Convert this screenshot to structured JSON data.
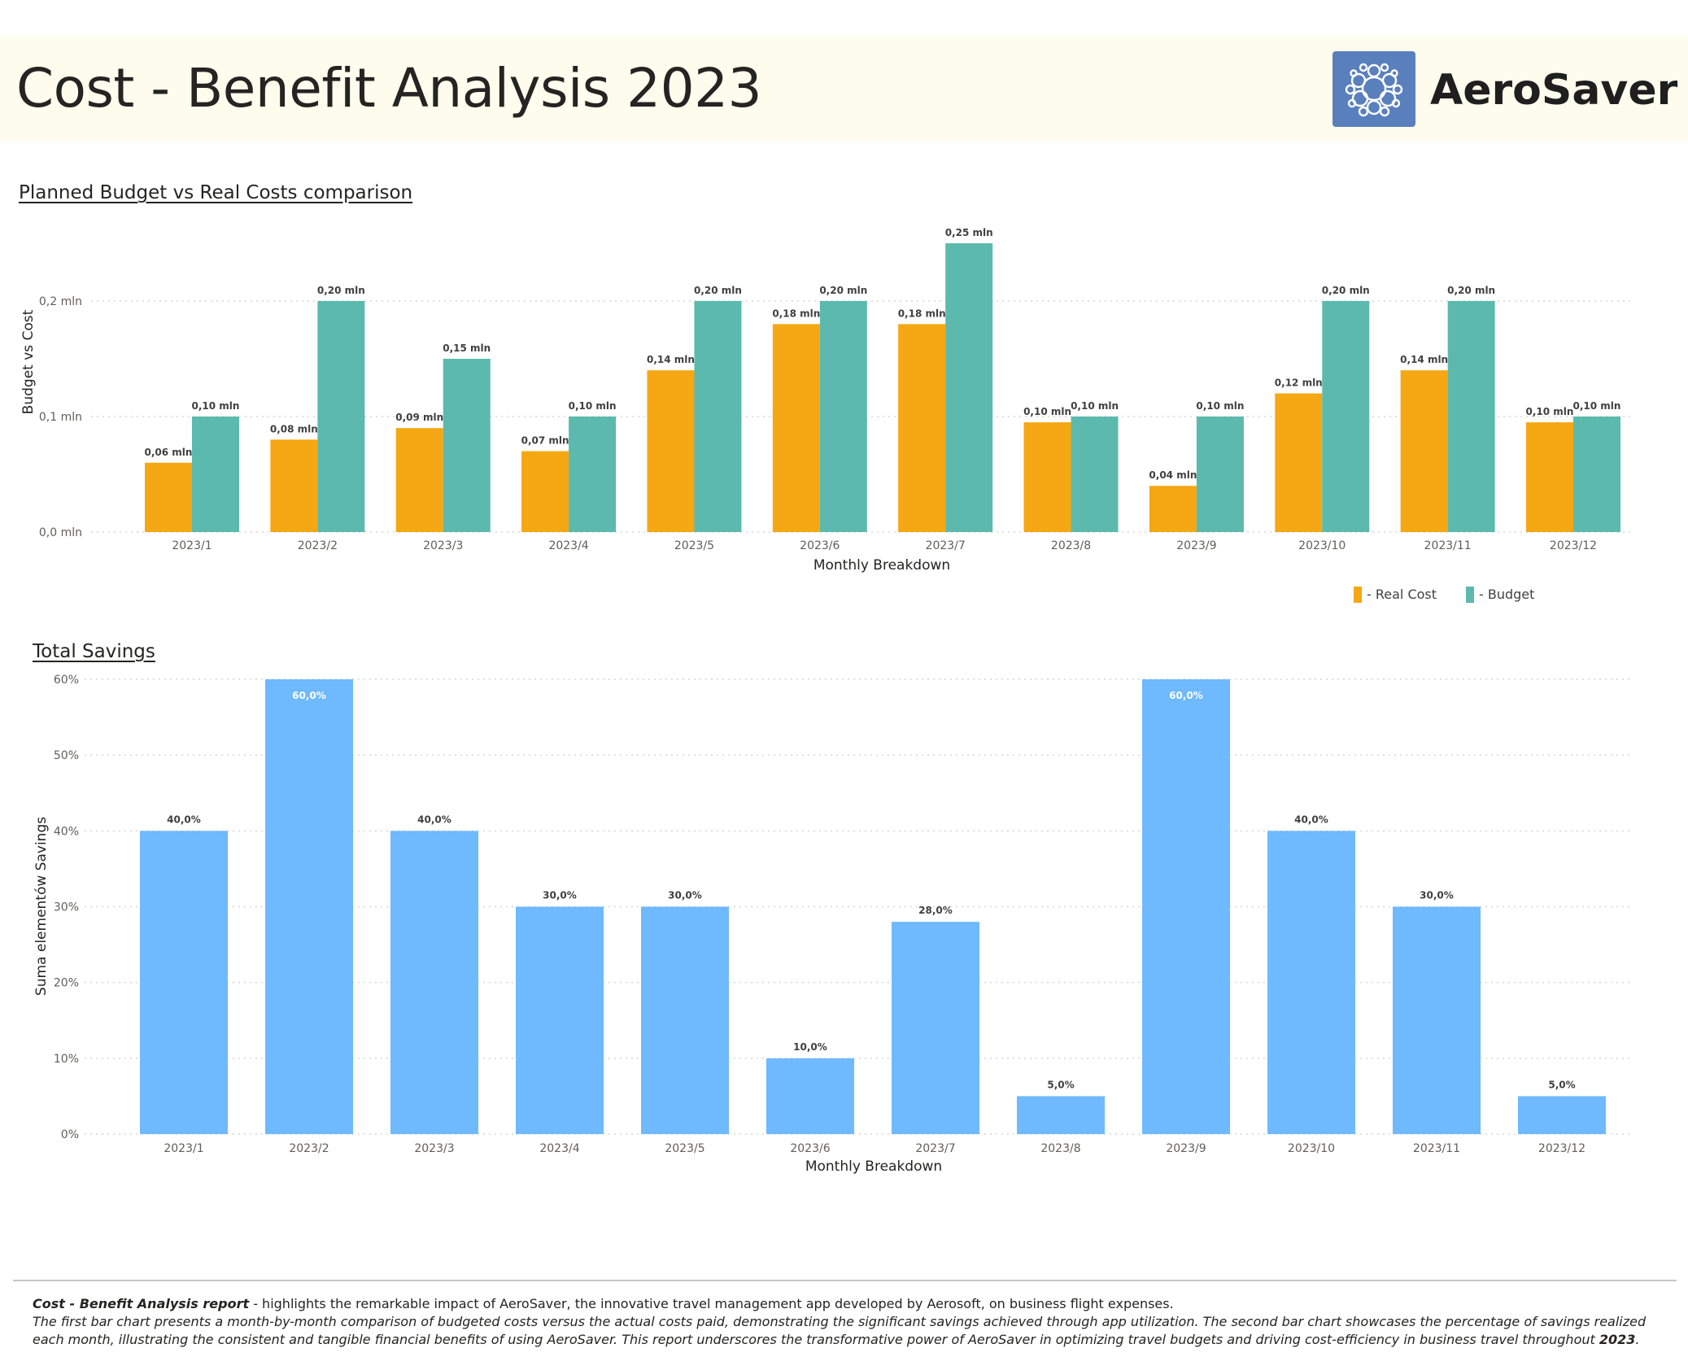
{
  "header": {
    "title": "Cost - Benefit Analysis 2023",
    "brand": "AeroSaver",
    "logo_icon": "bubble-globe-icon",
    "background": "#fefcec",
    "logo_color": "#5a7fbd"
  },
  "chart_data": [
    {
      "type": "bar",
      "title": "Planned Budget vs Real Costs comparison",
      "xlabel": "Monthly Breakdown",
      "ylabel": "Budget vs Cost",
      "categories": [
        "2023/1",
        "2023/2",
        "2023/3",
        "2023/4",
        "2023/5",
        "2023/6",
        "2023/7",
        "2023/8",
        "2023/9",
        "2023/10",
        "2023/11",
        "2023/12"
      ],
      "series": [
        {
          "name": "- Real Cost",
          "color": "#f5a714",
          "values": [
            0.06,
            0.08,
            0.09,
            0.07,
            0.14,
            0.18,
            0.18,
            0.095,
            0.04,
            0.12,
            0.14,
            0.095
          ],
          "labels": [
            "0,06 mln",
            "0,08 mln",
            "0,09 mln",
            "0,07 mln",
            "0,14 mln",
            "0,18 mln",
            "0,18 mln",
            "0,10 mln",
            "0,04 mln",
            "0,12 mln",
            "0,14 mln",
            "0,10 mln"
          ]
        },
        {
          "name": "- Budget",
          "color": "#5bbaad",
          "values": [
            0.1,
            0.2,
            0.15,
            0.1,
            0.2,
            0.2,
            0.25,
            0.1,
            0.1,
            0.2,
            0.2,
            0.1
          ],
          "labels": [
            "0,10 mln",
            "0,20 mln",
            "0,15 mln",
            "0,10 mln",
            "0,20 mln",
            "0,20 mln",
            "0,25 mln",
            "0,10 mln",
            "0,10 mln",
            "0,20 mln",
            "0,20 mln",
            "0,10 mln"
          ]
        }
      ],
      "yticks": [
        0,
        0.1,
        0.2
      ],
      "ytick_labels": [
        "0,0 mln",
        "0,1 mln",
        "0,2 mln"
      ],
      "ylim": [
        0,
        0.2
      ],
      "grid": true,
      "legend": "bottom-right"
    },
    {
      "type": "bar",
      "title": "Total Savings",
      "xlabel": "Monthly Breakdown",
      "ylabel": "Suma elementów Savings",
      "categories": [
        "2023/1",
        "2023/2",
        "2023/3",
        "2023/4",
        "2023/5",
        "2023/6",
        "2023/7",
        "2023/8",
        "2023/9",
        "2023/10",
        "2023/11",
        "2023/12"
      ],
      "series": [
        {
          "color": "#6fb9fe",
          "values": [
            40,
            60,
            40,
            30,
            30,
            10,
            28,
            5,
            60,
            40,
            30,
            5
          ],
          "labels": [
            "40,0%",
            "60,0%",
            "40,0%",
            "30,0%",
            "30,0%",
            "10,0%",
            "28,0%",
            "5,0%",
            "60,0%",
            "40,0%",
            "30,0%",
            "5,0%"
          ]
        }
      ],
      "yticks": [
        0,
        10,
        20,
        30,
        40,
        50,
        60
      ],
      "ytick_labels": [
        "0%",
        "10%",
        "20%",
        "30%",
        "40%",
        "50%",
        "60%"
      ],
      "ylim": [
        0,
        60
      ],
      "grid": true
    }
  ],
  "footer": {
    "lead": "Cost - Benefit Analysis report",
    "lead_rest": " - highlights the remarkable impact of AeroSaver, the innovative travel management app developed by Aerosoft, on business flight expenses.",
    "body": "The first bar chart presents a month-by-month comparison of budgeted  costs versus the actual costs paid, demonstrating the significant savings achieved through app utilization. The second bar chart showcases the percentage of savings realized each month, illustrating the consistent and tangible financial benefits of using AeroSaver. This report underscores the transformative power of AeroSaver in optimizing travel budgets and driving cost-efficiency in business travel throughout ",
    "year": "2023",
    "end": "."
  }
}
